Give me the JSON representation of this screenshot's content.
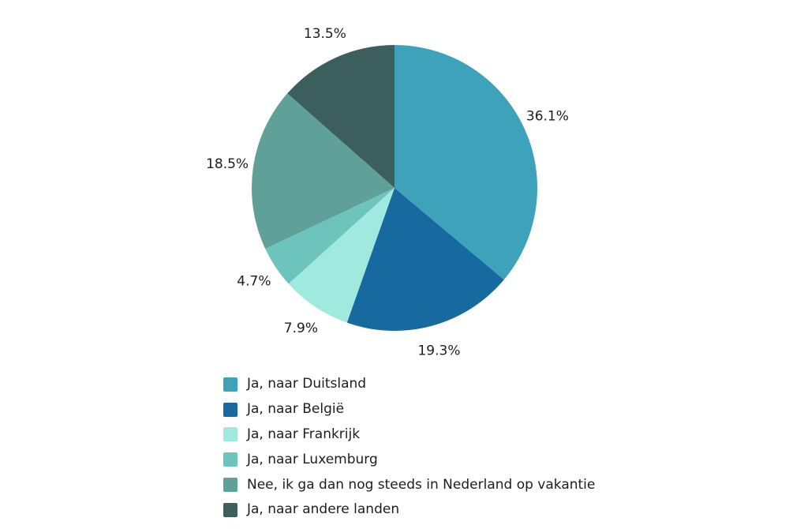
{
  "chart_data": {
    "type": "pie",
    "title": "",
    "start_angle_deg": 0,
    "direction": "clockwise",
    "legend_position": "bottom-left",
    "label_format": "percent-outside",
    "text_color": "#1d1d1d",
    "background_color": "#ffffff",
    "slices": [
      {
        "label": "Ja, naar Duitsland",
        "value": 36.1,
        "display": "36.1%",
        "color": "#3ea2ba"
      },
      {
        "label": "Ja, naar België",
        "value": 19.3,
        "display": "19.3%",
        "color": "#176a9f"
      },
      {
        "label": "Ja, naar Frankrijk",
        "value": 7.9,
        "display": "7.9%",
        "color": "#a0e9de"
      },
      {
        "label": "Ja, naar Luxemburg",
        "value": 4.7,
        "display": "4.7%",
        "color": "#6cc4bc"
      },
      {
        "label": "Nee, ik ga dan nog steeds in Nederland op vakantie",
        "value": 18.5,
        "display": "18.5%",
        "color": "#5fa198"
      },
      {
        "label": "Ja, naar andere landen",
        "value": 13.5,
        "display": "13.5%",
        "color": "#3c5f5e"
      }
    ]
  }
}
